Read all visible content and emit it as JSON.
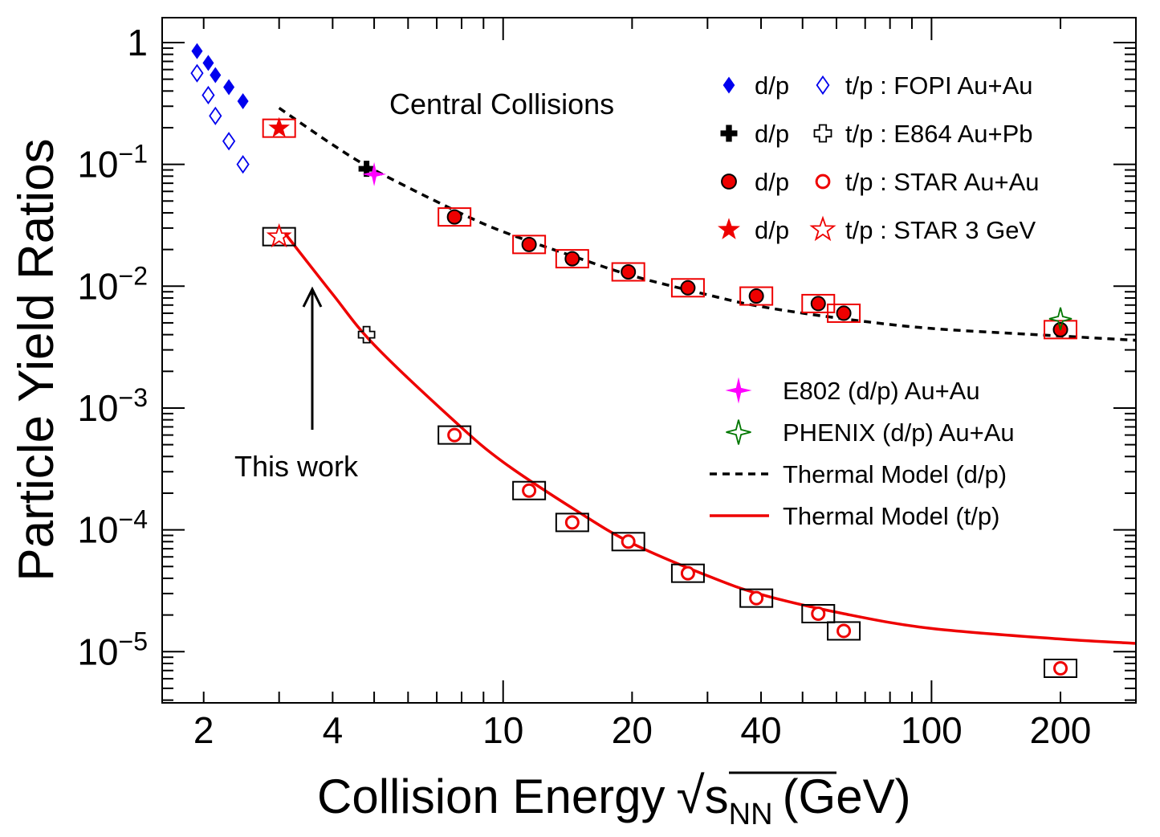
{
  "chart_data": {
    "type": "scatter",
    "xscale": "log",
    "yscale": "log",
    "xlim": [
      1.6,
      300
    ],
    "ylim": [
      3.8e-06,
      1.6
    ],
    "xlabel": {
      "main": "Collision Energy",
      "sqrt_sym": "√",
      "var": "s",
      "sub": "NN",
      "unit": "(GeV)"
    },
    "ylabel": "Particle Yield Ratios",
    "x_ticks": [
      {
        "v": 2,
        "label": "2"
      },
      {
        "v": 4,
        "label": "4"
      },
      {
        "v": 10,
        "label": "10"
      },
      {
        "v": 20,
        "label": "20"
      },
      {
        "v": 40,
        "label": "40"
      },
      {
        "v": 100,
        "label": "100"
      },
      {
        "v": 200,
        "label": "200"
      }
    ],
    "y_ticks": [
      {
        "v": 1,
        "base": "1",
        "exp": ""
      },
      {
        "v": 0.1,
        "base": "10",
        "exp": "−1"
      },
      {
        "v": 0.01,
        "base": "10",
        "exp": "−2"
      },
      {
        "v": 0.001,
        "base": "10",
        "exp": "−3"
      },
      {
        "v": 0.0001,
        "base": "10",
        "exp": "−4"
      },
      {
        "v": 1e-05,
        "base": "10",
        "exp": "−5"
      }
    ],
    "annotations": {
      "central": "Central Collisions",
      "this_work": "This work"
    },
    "series": [
      {
        "name": "FOPI d/p",
        "marker": "diamond-filled",
        "color": "#0000ee",
        "points": [
          [
            1.93,
            0.85
          ],
          [
            2.05,
            0.68
          ],
          [
            2.13,
            0.54
          ],
          [
            2.29,
            0.43
          ],
          [
            2.47,
            0.33
          ]
        ]
      },
      {
        "name": "FOPI t/p",
        "marker": "diamond-open",
        "color": "#0000ee",
        "points": [
          [
            1.93,
            0.56
          ],
          [
            2.05,
            0.37
          ],
          [
            2.13,
            0.25
          ],
          [
            2.29,
            0.155
          ],
          [
            2.47,
            0.1
          ]
        ]
      },
      {
        "name": "E864 d/p",
        "marker": "cross-filled",
        "color": "#000000",
        "points": [
          [
            4.8,
            0.092
          ]
        ]
      },
      {
        "name": "E864 t/p",
        "marker": "cross-open",
        "color": "#000000",
        "points": [
          [
            4.8,
            0.004
          ]
        ]
      },
      {
        "name": "E802 d/p",
        "marker": "star4-filled",
        "color": "#ff00ff",
        "points": [
          [
            5.0,
            0.083
          ]
        ]
      },
      {
        "name": "STAR 3 GeV d/p",
        "marker": "star-filled",
        "color": "#ee0000",
        "points": [
          [
            3.0,
            0.198
          ]
        ]
      },
      {
        "name": "STAR 3 GeV t/p",
        "marker": "star-open",
        "color": "#ee0000",
        "points": [
          [
            3.0,
            0.0255
          ]
        ]
      },
      {
        "name": "STAR Au+Au d/p",
        "marker": "circle-filled",
        "color": "#ee0000",
        "points": [
          [
            7.7,
            0.037
          ],
          [
            11.5,
            0.022
          ],
          [
            14.5,
            0.0168
          ],
          [
            19.6,
            0.0131
          ],
          [
            27,
            0.0097
          ],
          [
            39,
            0.0083
          ],
          [
            54.4,
            0.0072
          ],
          [
            62.4,
            0.006
          ],
          [
            200,
            0.0044
          ]
        ]
      },
      {
        "name": "STAR Au+Au t/p",
        "marker": "circle-open",
        "color": "#ee0000",
        "points": [
          [
            7.7,
            0.0006
          ],
          [
            11.5,
            0.00021
          ],
          [
            14.5,
            0.000115
          ],
          [
            19.6,
            8e-05
          ],
          [
            27,
            4.4e-05
          ],
          [
            39,
            2.75e-05
          ],
          [
            54.4,
            2.05e-05
          ],
          [
            62.4,
            1.48e-05
          ],
          [
            200,
            7.3e-06
          ]
        ]
      },
      {
        "name": "PHENIX d/p",
        "marker": "star4-open",
        "color": "#007700",
        "points": [
          [
            200,
            0.0054
          ]
        ]
      }
    ],
    "sys_boxes": [
      {
        "color": "#ee0000",
        "points": [
          [
            3.0,
            0.198
          ],
          [
            7.7,
            0.037
          ],
          [
            11.5,
            0.022
          ],
          [
            14.5,
            0.0168
          ],
          [
            19.6,
            0.0131
          ],
          [
            27,
            0.0097
          ],
          [
            39,
            0.0083
          ],
          [
            54.4,
            0.0072
          ],
          [
            62.4,
            0.006
          ],
          [
            200,
            0.0044
          ]
        ]
      },
      {
        "color": "#000000",
        "points": [
          [
            3.0,
            0.0255
          ],
          [
            7.7,
            0.0006
          ],
          [
            11.5,
            0.00021
          ],
          [
            14.5,
            0.000115
          ],
          [
            19.6,
            8e-05
          ],
          [
            27,
            4.4e-05
          ],
          [
            39,
            2.75e-05
          ],
          [
            54.4,
            2.05e-05
          ],
          [
            62.4,
            1.48e-05
          ],
          [
            200,
            7.3e-06
          ]
        ]
      }
    ],
    "curves": [
      {
        "name": "Thermal Model (d/p)",
        "style": "dashed",
        "color": "#000000",
        "points": [
          [
            3.0,
            0.29
          ],
          [
            4.0,
            0.145
          ],
          [
            5.0,
            0.09
          ],
          [
            7.7,
            0.042
          ],
          [
            10,
            0.028
          ],
          [
            15,
            0.017
          ],
          [
            20,
            0.0122
          ],
          [
            30,
            0.0085
          ],
          [
            40,
            0.0068
          ],
          [
            62.4,
            0.0054
          ],
          [
            100,
            0.0045
          ],
          [
            200,
            0.0039
          ],
          [
            300,
            0.0036
          ]
        ]
      },
      {
        "name": "Thermal Model (t/p)",
        "style": "solid",
        "color": "#ee0000",
        "points": [
          [
            3.1,
            0.027
          ],
          [
            4.0,
            0.0086
          ],
          [
            5.0,
            0.0033
          ],
          [
            7.7,
            0.00078
          ],
          [
            10,
            0.00036
          ],
          [
            15,
            0.00014
          ],
          [
            20,
            7.75e-05
          ],
          [
            30,
            4.2e-05
          ],
          [
            40,
            2.95e-05
          ],
          [
            62.4,
            2.05e-05
          ],
          [
            100,
            1.55e-05
          ],
          [
            200,
            1.27e-05
          ],
          [
            300,
            1.17e-05
          ]
        ]
      }
    ],
    "legend_top": {
      "rows": [
        {
          "d_label": "d/p",
          "t_label": "t/p : FOPI Au+Au",
          "d_marker": "diamond-filled",
          "t_marker": "diamond-open",
          "d_color": "#0000ee",
          "t_color": "#0000ee"
        },
        {
          "d_label": "d/p",
          "t_label": "t/p : E864 Au+Pb",
          "d_marker": "cross-filled",
          "t_marker": "cross-open",
          "d_color": "#000000",
          "t_color": "#000000"
        },
        {
          "d_label": "d/p",
          "t_label": "t/p : STAR Au+Au",
          "d_marker": "circle-filled",
          "t_marker": "circle-open",
          "d_color": "#ee0000",
          "t_color": "#ee0000"
        },
        {
          "d_label": "d/p",
          "t_label": "t/p : STAR 3 GeV",
          "d_marker": "star-filled",
          "t_marker": "star-open",
          "d_color": "#ee0000",
          "t_color": "#ee0000"
        }
      ],
      "placement": "top-right"
    },
    "legend_bottom": {
      "rows": [
        {
          "label": "E802 (d/p) Au+Au",
          "kind": "star4-filled",
          "color": "#ff00ff"
        },
        {
          "label": "PHENIX (d/p) Au+Au",
          "kind": "star4-open",
          "color": "#007700"
        },
        {
          "label": "Thermal Model (d/p)",
          "kind": "line-dashed",
          "color": "#000000"
        },
        {
          "label": "Thermal Model (t/p)",
          "kind": "line-solid",
          "color": "#ee0000"
        }
      ],
      "placement": "middle-right"
    }
  }
}
